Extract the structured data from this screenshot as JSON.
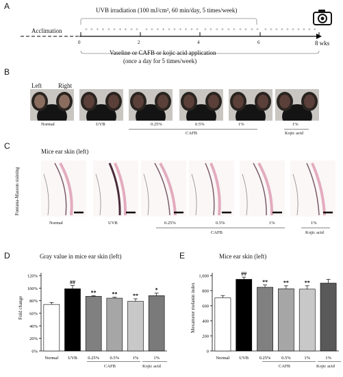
{
  "panels": {
    "A": {
      "label": "A",
      "irradiation": "UVB irradiation (100 mJ/cm², 60 min/day, 5 times/week)",
      "acclimation": "Acclimation",
      "ticks": [
        "0",
        "2",
        "4",
        "6",
        "8 wks"
      ],
      "application_line1": "Vaseline or CAFB or kojic acid  application",
      "application_line2": "(once a day for 5 times/week)",
      "icon": "camera-icon"
    },
    "B": {
      "label": "B",
      "left": "Left",
      "right": "Right",
      "groups": [
        "Normal",
        "UVB",
        "0.25%",
        "0.5%",
        "1%",
        "1%"
      ],
      "cafb": "CAFB",
      "kojic": "Kojic acid"
    },
    "C": {
      "label": "C",
      "title": "Mice ear skin (left)",
      "side_label": "Fontana-Masson staining",
      "groups": [
        "Normal",
        "UVB",
        "0.25%",
        "0.5%",
        "1%",
        "1%"
      ],
      "cafb": "CAFB",
      "kojic": "Kojic acid"
    },
    "D": {
      "label": "D",
      "sig": [
        "",
        "##",
        "**",
        "**",
        "**",
        "*"
      ],
      "cafb": "CAFB",
      "kojic": "Kojic acid"
    },
    "E": {
      "label": "E",
      "sig": [
        "",
        "##",
        "**",
        "**",
        "**",
        ""
      ],
      "cafb": "CAFB",
      "kojic": "Kojic acid"
    }
  },
  "chart_data": [
    {
      "type": "bar",
      "title": "Gray value in mice ear skin (left)",
      "ylabel": "Fold change",
      "xlabel": "",
      "categories": [
        "Normal",
        "UVB",
        "0.25%",
        "0.5%",
        "1%",
        "1%"
      ],
      "values": [
        74,
        99,
        87,
        84,
        79,
        88
      ],
      "errors": [
        3,
        5,
        1,
        1.5,
        4,
        4
      ],
      "yticks": [
        "0%",
        "20%",
        "40%",
        "60%",
        "80%",
        "100%",
        "120%"
      ],
      "ylim": [
        0,
        120
      ],
      "colors": [
        "#ffffff",
        "#000000",
        "#808080",
        "#a6a6a6",
        "#c8c8c8",
        "#7a7a7a"
      ]
    },
    {
      "type": "bar",
      "title": "Mice ear skin (left)",
      "ylabel": "Mexameter melanin index",
      "xlabel": "",
      "categories": [
        "Normal",
        "UVB",
        "0.25%",
        "0.5%",
        "1%",
        "1%"
      ],
      "values": [
        705,
        950,
        845,
        825,
        820,
        900
      ],
      "errors": [
        30,
        30,
        30,
        40,
        45,
        50
      ],
      "yticks": [
        "0",
        "200",
        "400",
        "600",
        "800",
        "1,000"
      ],
      "ylim": [
        0,
        1000
      ],
      "colors": [
        "#ffffff",
        "#000000",
        "#808080",
        "#a6a6a6",
        "#c8c8c8",
        "#595959"
      ]
    }
  ]
}
